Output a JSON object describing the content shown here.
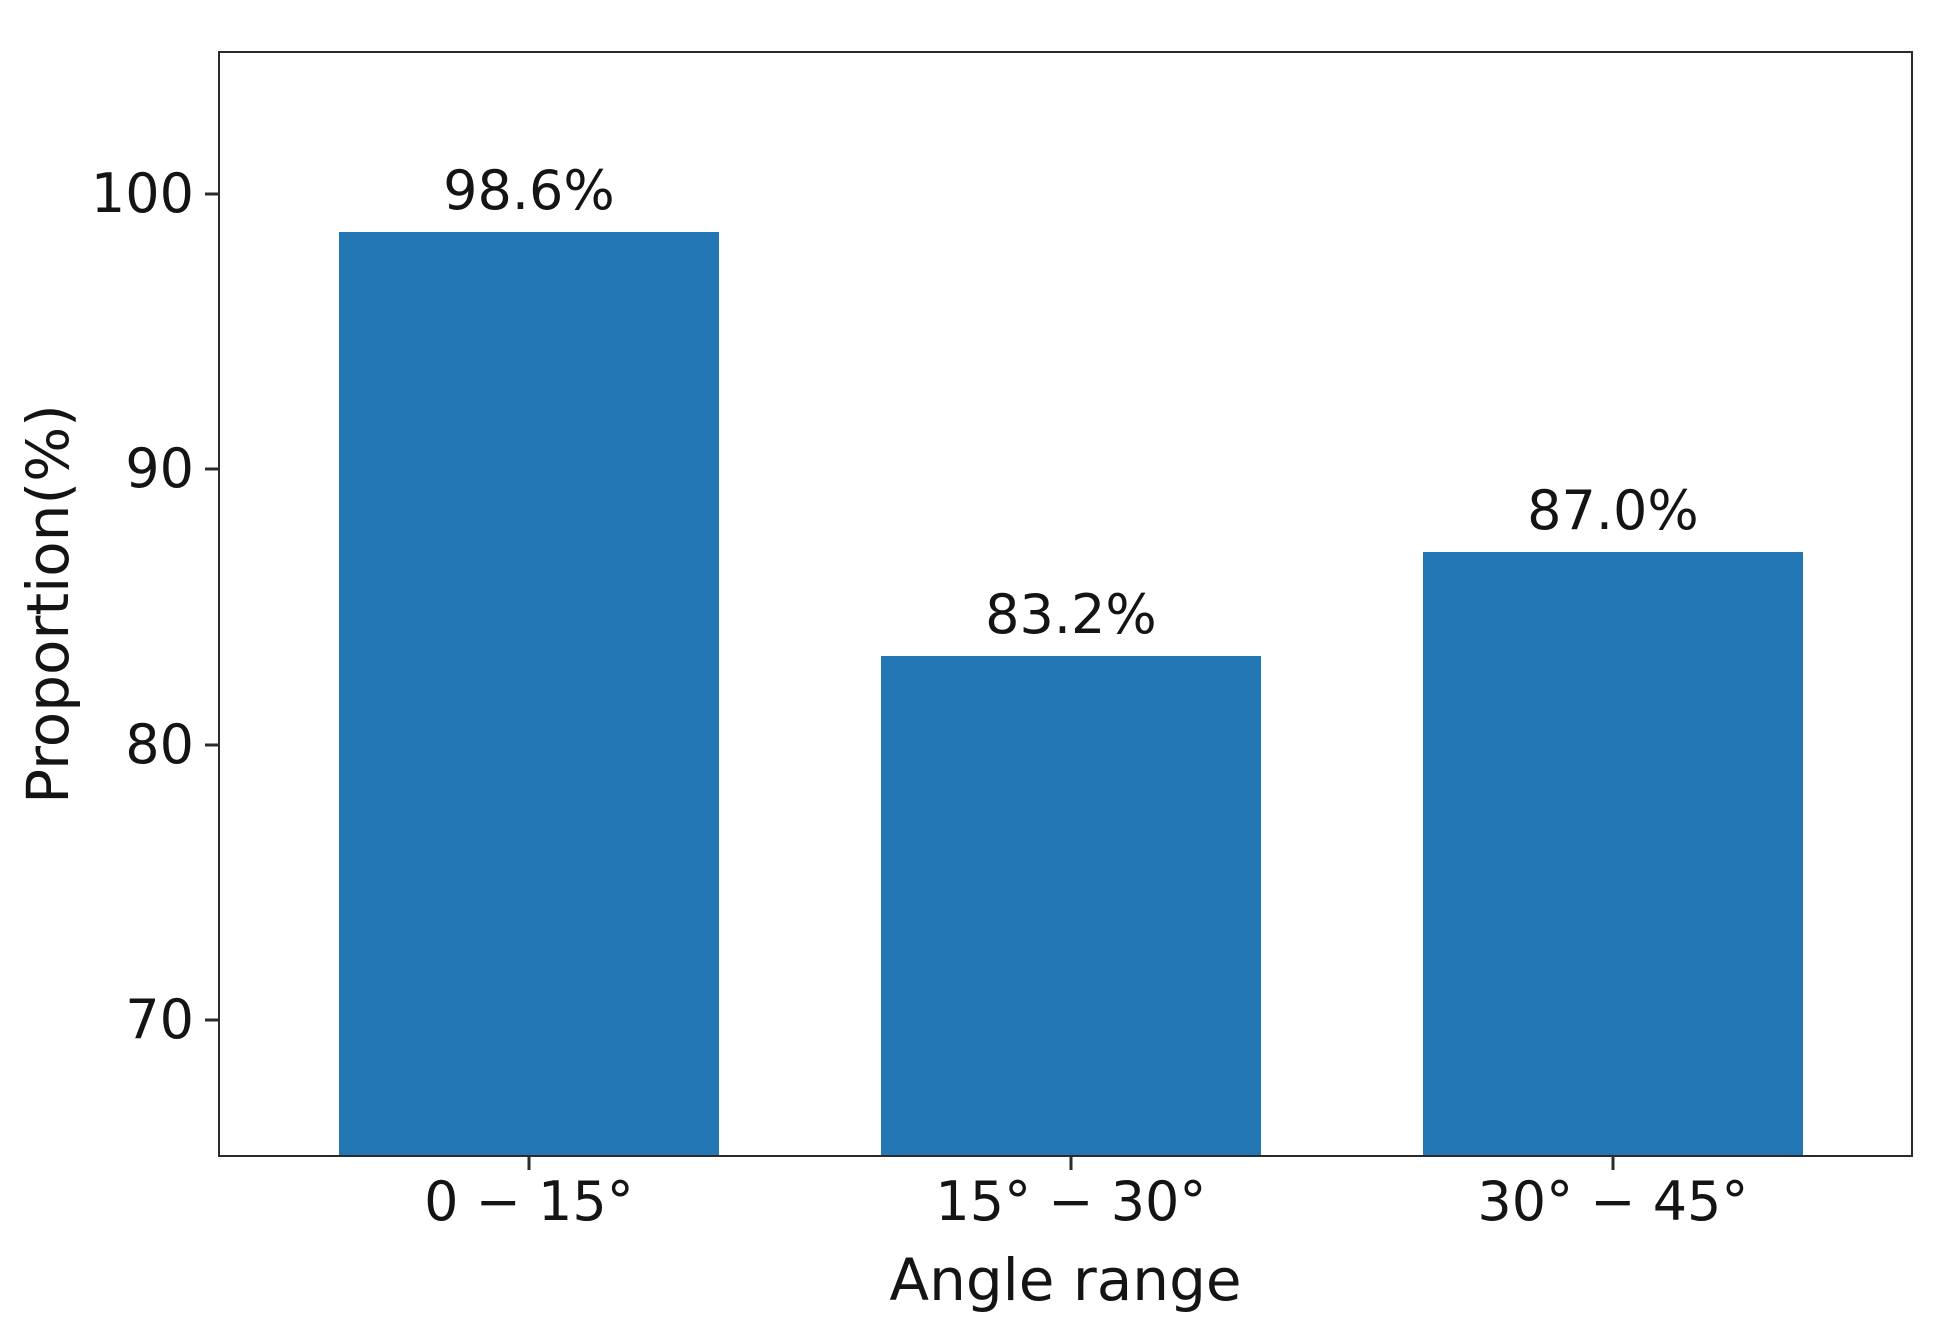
{
  "figure": {
    "background": "#ffffff"
  },
  "chart_data": {
    "type": "bar",
    "categories": [
      "0 − 15°",
      "15° − 30°",
      "30° − 45°"
    ],
    "values": [
      98.6,
      83.2,
      87.0
    ],
    "bar_labels": [
      "98.6%",
      "83.2%",
      "87.0%"
    ],
    "title": "",
    "xlabel": "Angle range",
    "ylabel": "Proportion(%)",
    "yticks": [
      70,
      80,
      90,
      100
    ],
    "ylim": [
      65.1,
      105.1
    ],
    "xlim": [
      -0.57,
      2.55
    ],
    "bar_width": 0.7,
    "grid": false,
    "legend": null,
    "bar_color": "#2377b4",
    "axis_color": "#2b2b2b",
    "text_color": "#141414"
  }
}
